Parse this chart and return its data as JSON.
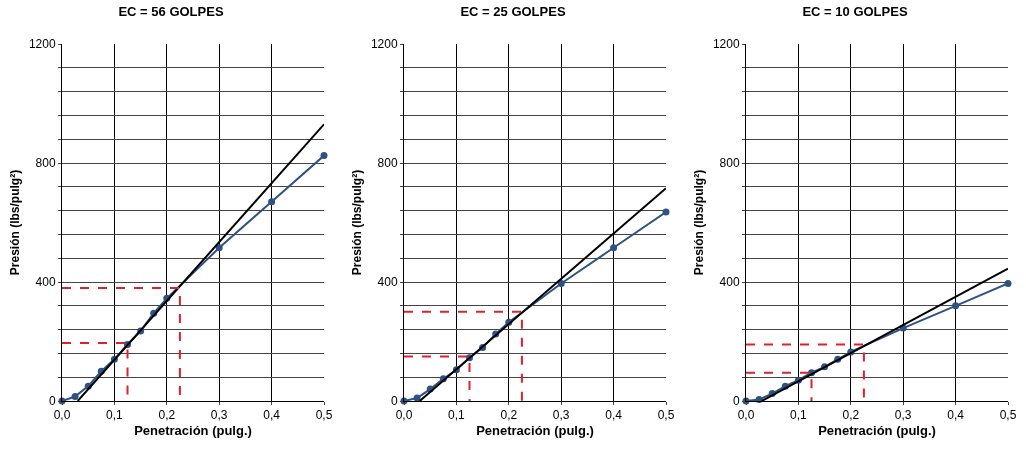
{
  "chart_data": [
    {
      "type": "line",
      "title": "EC = 56 GOLPES",
      "xlabel": "Penetración (pulg.)",
      "ylabel": "Presión (lbs/pulg²)",
      "grid": true,
      "xlim": [
        0,
        0.5
      ],
      "xticks": [
        {
          "value": 0,
          "label": "0,0"
        },
        {
          "value": 0.1,
          "label": "0,1"
        },
        {
          "value": 0.2,
          "label": "0,2"
        },
        {
          "value": 0.3,
          "label": "0,3"
        },
        {
          "value": 0.4,
          "label": "0,4"
        },
        {
          "value": 0.5,
          "label": "0,5"
        }
      ],
      "ylim": [
        0,
        1200
      ],
      "yticks": [
        0,
        {
          "value": 80,
          "label": null
        },
        {
          "value": 160,
          "label": null
        },
        {
          "value": 240,
          "label": null
        },
        {
          "value": 320,
          "label": null
        },
        400,
        {
          "value": 480,
          "label": null
        },
        {
          "value": 560,
          "label": null
        },
        {
          "value": 640,
          "label": null
        },
        {
          "value": 720,
          "label": null
        },
        800,
        {
          "value": 880,
          "label": null
        },
        {
          "value": 960,
          "label": null
        },
        {
          "value": 1040,
          "label": null
        },
        {
          "value": 1120,
          "label": null
        },
        1200
      ],
      "series": [
        {
          "color": "#2e5283",
          "marker": "circle",
          "line_style": "solid",
          "x": [
            0,
            0.025,
            0.05,
            0.075,
            0.1,
            0.125,
            0.15,
            0.175,
            0.2,
            0.3,
            0.4,
            0.5
          ],
          "values": [
            0,
            15,
            50,
            100,
            140,
            190,
            235,
            295,
            345,
            515,
            670,
            825
          ]
        },
        {
          "color": "#000000",
          "marker": "none",
          "line_style": "solid",
          "x": [
            0.03,
            0.5
          ],
          "values": [
            0,
            930
          ]
        },
        {
          "color": "#e0202a",
          "marker": "none",
          "line_style": "dashed",
          "x": [
            0,
            0.125,
            0.125
          ],
          "values": [
            195,
            195,
            0
          ]
        },
        {
          "color": "#e0202a",
          "marker": "none",
          "line_style": "dashed",
          "x": [
            0,
            0.225,
            0.225
          ],
          "values": [
            380,
            380,
            0
          ]
        }
      ]
    },
    {
      "type": "line",
      "title": "EC = 25 GOLPES",
      "xlabel": "Penetración (pulg.)",
      "ylabel": "Presión (lbs/pulg²)",
      "grid": true,
      "xlim": [
        0,
        0.5
      ],
      "xticks": [
        {
          "value": 0,
          "label": "0,0"
        },
        {
          "value": 0.1,
          "label": "0,1"
        },
        {
          "value": 0.2,
          "label": "0,2"
        },
        {
          "value": 0.3,
          "label": "0,3"
        },
        {
          "value": 0.4,
          "label": "0,4"
        },
        {
          "value": 0.5,
          "label": "0,5"
        }
      ],
      "ylim": [
        0,
        1200
      ],
      "yticks": [
        0,
        {
          "value": 80,
          "label": null
        },
        {
          "value": 160,
          "label": null
        },
        {
          "value": 240,
          "label": null
        },
        {
          "value": 320,
          "label": null
        },
        400,
        {
          "value": 480,
          "label": null
        },
        {
          "value": 560,
          "label": null
        },
        {
          "value": 640,
          "label": null
        },
        {
          "value": 720,
          "label": null
        },
        800,
        {
          "value": 880,
          "label": null
        },
        {
          "value": 960,
          "label": null
        },
        {
          "value": 1040,
          "label": null
        },
        {
          "value": 1120,
          "label": null
        },
        1200
      ],
      "series": [
        {
          "color": "#2e5283",
          "marker": "circle",
          "line_style": "solid",
          "x": [
            0,
            0.025,
            0.05,
            0.075,
            0.1,
            0.125,
            0.15,
            0.175,
            0.2,
            0.3,
            0.4,
            0.5
          ],
          "values": [
            0,
            10,
            40,
            75,
            105,
            145,
            180,
            225,
            265,
            395,
            515,
            635
          ]
        },
        {
          "color": "#000000",
          "marker": "none",
          "line_style": "solid",
          "x": [
            0.03,
            0.5
          ],
          "values": [
            0,
            715
          ]
        },
        {
          "color": "#e0202a",
          "marker": "none",
          "line_style": "dashed",
          "x": [
            0,
            0.125,
            0.125
          ],
          "values": [
            150,
            150,
            0
          ]
        },
        {
          "color": "#e0202a",
          "marker": "none",
          "line_style": "dashed",
          "x": [
            0,
            0.225,
            0.225
          ],
          "values": [
            300,
            300,
            0
          ]
        }
      ]
    },
    {
      "type": "line",
      "title": "EC = 10 GOLPES",
      "xlabel": "Penetración (pulg.)",
      "ylabel": "Presión (lbs/pulg²)",
      "grid": true,
      "xlim": [
        0,
        0.5
      ],
      "xticks": [
        {
          "value": 0,
          "label": "0,0"
        },
        {
          "value": 0.1,
          "label": "0,1"
        },
        {
          "value": 0.2,
          "label": "0,2"
        },
        {
          "value": 0.3,
          "label": "0,3"
        },
        {
          "value": 0.4,
          "label": "0,4"
        },
        {
          "value": 0.5,
          "label": "0,5"
        }
      ],
      "ylim": [
        0,
        1200
      ],
      "yticks": [
        0,
        {
          "value": 80,
          "label": null
        },
        {
          "value": 160,
          "label": null
        },
        {
          "value": 240,
          "label": null
        },
        {
          "value": 320,
          "label": null
        },
        400,
        {
          "value": 480,
          "label": null
        },
        {
          "value": 560,
          "label": null
        },
        {
          "value": 640,
          "label": null
        },
        {
          "value": 720,
          "label": null
        },
        800,
        {
          "value": 880,
          "label": null
        },
        {
          "value": 960,
          "label": null
        },
        {
          "value": 1040,
          "label": null
        },
        {
          "value": 1120,
          "label": null
        },
        1200
      ],
      "series": [
        {
          "color": "#2e5283",
          "marker": "circle",
          "line_style": "solid",
          "x": [
            0,
            0.025,
            0.05,
            0.075,
            0.1,
            0.125,
            0.15,
            0.175,
            0.2,
            0.3,
            0.4,
            0.5
          ],
          "values": [
            0,
            5,
            25,
            50,
            70,
            95,
            115,
            140,
            165,
            245,
            320,
            395
          ]
        },
        {
          "color": "#000000",
          "marker": "none",
          "line_style": "solid",
          "x": [
            0.03,
            0.5
          ],
          "values": [
            0,
            445
          ]
        },
        {
          "color": "#e0202a",
          "marker": "none",
          "line_style": "dashed",
          "x": [
            0,
            0.125,
            0.125
          ],
          "values": [
            95,
            95,
            0
          ]
        },
        {
          "color": "#e0202a",
          "marker": "none",
          "line_style": "dashed",
          "x": [
            0,
            0.225,
            0.225
          ],
          "values": [
            190,
            190,
            0
          ]
        }
      ]
    }
  ]
}
